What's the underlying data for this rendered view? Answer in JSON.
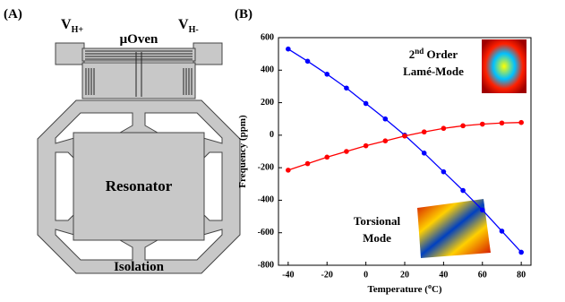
{
  "panel_a": {
    "label": "(A)",
    "v_plus": {
      "main": "V",
      "sub": "H+"
    },
    "v_minus": {
      "main": "V",
      "sub": "H-"
    },
    "oven": "μOven",
    "resonator": "Resonator",
    "isolation": "Isolation"
  },
  "chart_data": {
    "type": "line",
    "panel_label": "(B)",
    "xlabel": {
      "before": "Temperature (",
      "sup": "o",
      "after": "C)"
    },
    "ylabel": "Frequency (ppm)",
    "x": [
      -40,
      -30,
      -20,
      -10,
      0,
      10,
      20,
      30,
      40,
      50,
      60,
      70,
      80
    ],
    "series": [
      {
        "color": "#0000ff",
        "values": [
          530,
          455,
          375,
          290,
          195,
          100,
          0,
          -110,
          -225,
          -340,
          -460,
          -590,
          -720
        ]
      },
      {
        "color": "#ff0000",
        "values": [
          -215,
          -175,
          -135,
          -100,
          -65,
          -35,
          -5,
          20,
          42,
          58,
          68,
          75,
          78
        ]
      }
    ],
    "xlim": [
      -45,
      85
    ],
    "xticks": [
      -40,
      -20,
      0,
      20,
      40,
      60,
      80
    ],
    "ylim": [
      -800,
      600
    ],
    "yticks": [
      -800,
      -600,
      -400,
      -200,
      0,
      200,
      400,
      600
    ],
    "grid": false,
    "annotations": {
      "lame": {
        "num": "2",
        "sup": "nd",
        "rest": " Order",
        "line2": "Lamé-Mode"
      },
      "torsional": {
        "line1": "Torsional",
        "line2": "Mode"
      }
    }
  }
}
